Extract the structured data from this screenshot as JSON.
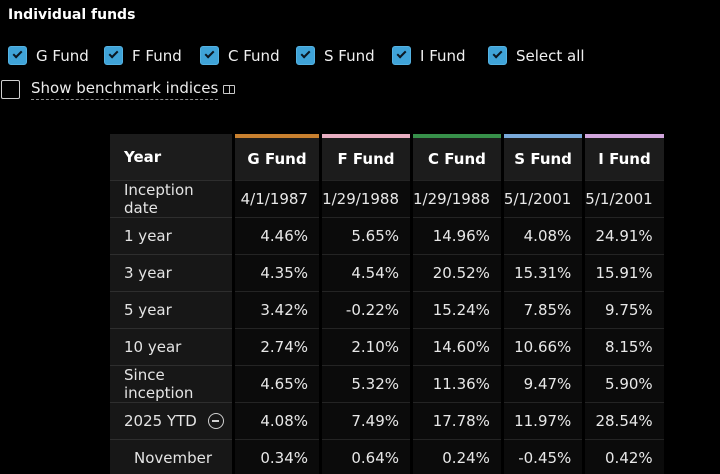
{
  "header": {
    "title": "Individual funds"
  },
  "filters": {
    "checkbox_color": "#3fa3d8",
    "checkboxes": [
      {
        "label": "G Fund",
        "checked": true
      },
      {
        "label": "F Fund",
        "checked": true
      },
      {
        "label": "C Fund",
        "checked": true
      },
      {
        "label": "S Fund",
        "checked": true
      },
      {
        "label": "I Fund",
        "checked": true
      },
      {
        "label": "Select all",
        "checked": true
      }
    ],
    "benchmark_label": "Show benchmark indices",
    "benchmark_checked": false,
    "benchmark_icon": "book-icon"
  },
  "chart_data": {
    "type": "table",
    "title": "Individual funds",
    "columns": [
      "Year",
      "G Fund",
      "F Fund",
      "C Fund",
      "S Fund",
      "I Fund"
    ],
    "fund_colors": [
      "#c8802f",
      "#e8aec1",
      "#37904a",
      "#79a9d9",
      "#d1a5dc"
    ],
    "rows": [
      {
        "label": "Inception date",
        "values": [
          "4/1/1987",
          "1/29/1988",
          "1/29/1988",
          "5/1/2001",
          "5/1/2001"
        ]
      },
      {
        "label": "1 year",
        "values": [
          "4.46%",
          "5.65%",
          "14.96%",
          "4.08%",
          "24.91%"
        ]
      },
      {
        "label": "3 year",
        "values": [
          "4.35%",
          "4.54%",
          "20.52%",
          "15.31%",
          "15.91%"
        ]
      },
      {
        "label": "5 year",
        "values": [
          "3.42%",
          "-0.22%",
          "15.24%",
          "7.85%",
          "9.75%"
        ]
      },
      {
        "label": "10 year",
        "values": [
          "2.74%",
          "2.10%",
          "14.60%",
          "10.66%",
          "8.15%"
        ]
      },
      {
        "label": "Since inception",
        "values": [
          "4.65%",
          "5.32%",
          "11.36%",
          "9.47%",
          "5.90%"
        ]
      },
      {
        "label": "2025 YTD",
        "collapse_icon": "minus-circle-icon",
        "values": [
          "4.08%",
          "7.49%",
          "17.78%",
          "11.97%",
          "28.54%"
        ]
      },
      {
        "label": "November",
        "indent": true,
        "values": [
          "0.34%",
          "0.64%",
          "0.24%",
          "-0.45%",
          "0.42%"
        ]
      }
    ]
  }
}
